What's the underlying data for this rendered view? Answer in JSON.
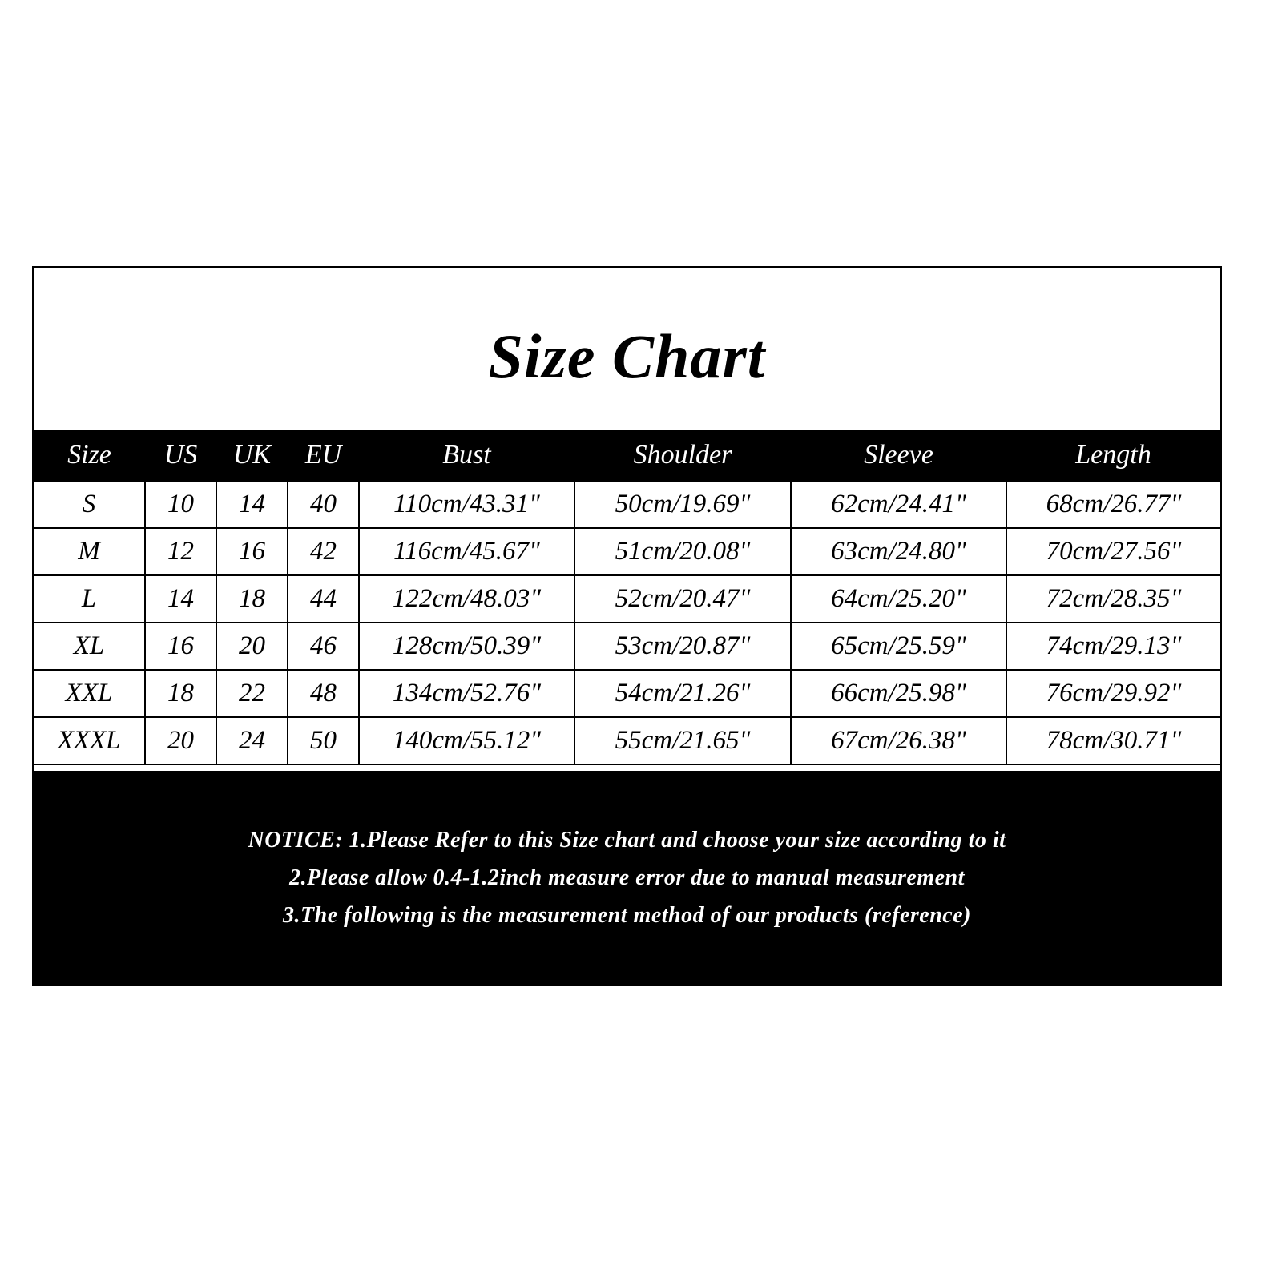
{
  "title": "Size Chart",
  "table": {
    "headers": [
      "Size",
      "US",
      "UK",
      "EU",
      "Bust",
      "Shoulder",
      "Sleeve",
      "Length"
    ],
    "rows": [
      [
        "S",
        "10",
        "14",
        "40",
        "110cm/43.31\"",
        "50cm/19.69\"",
        "62cm/24.41\"",
        "68cm/26.77\""
      ],
      [
        "M",
        "12",
        "16",
        "42",
        "116cm/45.67\"",
        "51cm/20.08\"",
        "63cm/24.80\"",
        "70cm/27.56\""
      ],
      [
        "L",
        "14",
        "18",
        "44",
        "122cm/48.03\"",
        "52cm/20.47\"",
        "64cm/25.20\"",
        "72cm/28.35\""
      ],
      [
        "XL",
        "16",
        "20",
        "46",
        "128cm/50.39\"",
        "53cm/20.87\"",
        "65cm/25.59\"",
        "74cm/29.13\""
      ],
      [
        "XXL",
        "18",
        "22",
        "48",
        "134cm/52.76\"",
        "54cm/21.26\"",
        "66cm/25.98\"",
        "76cm/29.92\""
      ],
      [
        "XXXL",
        "20",
        "24",
        "50",
        "140cm/55.12\"",
        "55cm/21.65\"",
        "67cm/26.38\"",
        "78cm/30.71\""
      ]
    ]
  },
  "notice": [
    "NOTICE: 1.Please Refer to this Size chart and choose your size according to it",
    "2.Please allow 0.4-1.2inch measure error due to manual measurement",
    "3.The following is the measurement method of our products (reference)"
  ]
}
